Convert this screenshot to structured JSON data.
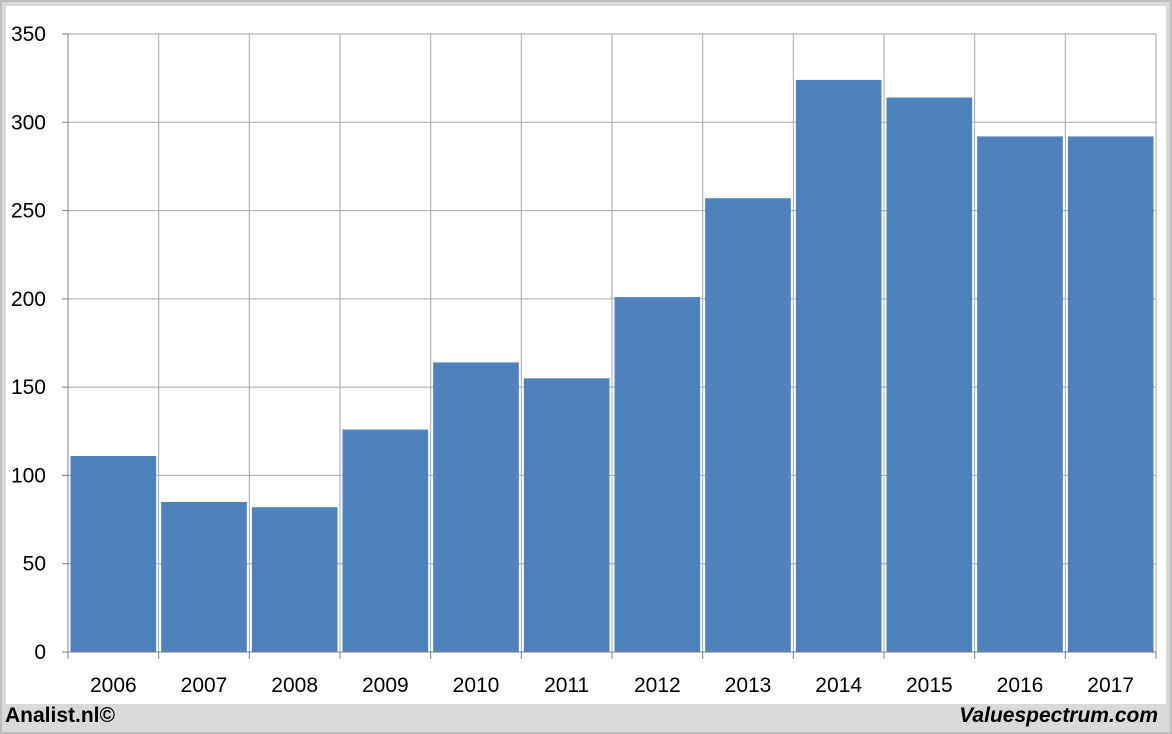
{
  "chart_data": {
    "type": "bar",
    "categories": [
      "2006",
      "2007",
      "2008",
      "2009",
      "2010",
      "2011",
      "2012",
      "2013",
      "2014",
      "2015",
      "2016",
      "2017"
    ],
    "values": [
      111,
      85,
      82,
      126,
      164,
      155,
      201,
      257,
      324,
      314,
      292,
      292
    ],
    "ylim": [
      0,
      350
    ],
    "yticks": [
      "0",
      "50",
      "100",
      "150",
      "200",
      "250",
      "300",
      "350"
    ],
    "grid": true,
    "bar_color": "#4f81bd",
    "grid_color": "#a6a6a6"
  },
  "footer": {
    "left": "Analist.nl©",
    "right": "Valuespectrum.com"
  }
}
